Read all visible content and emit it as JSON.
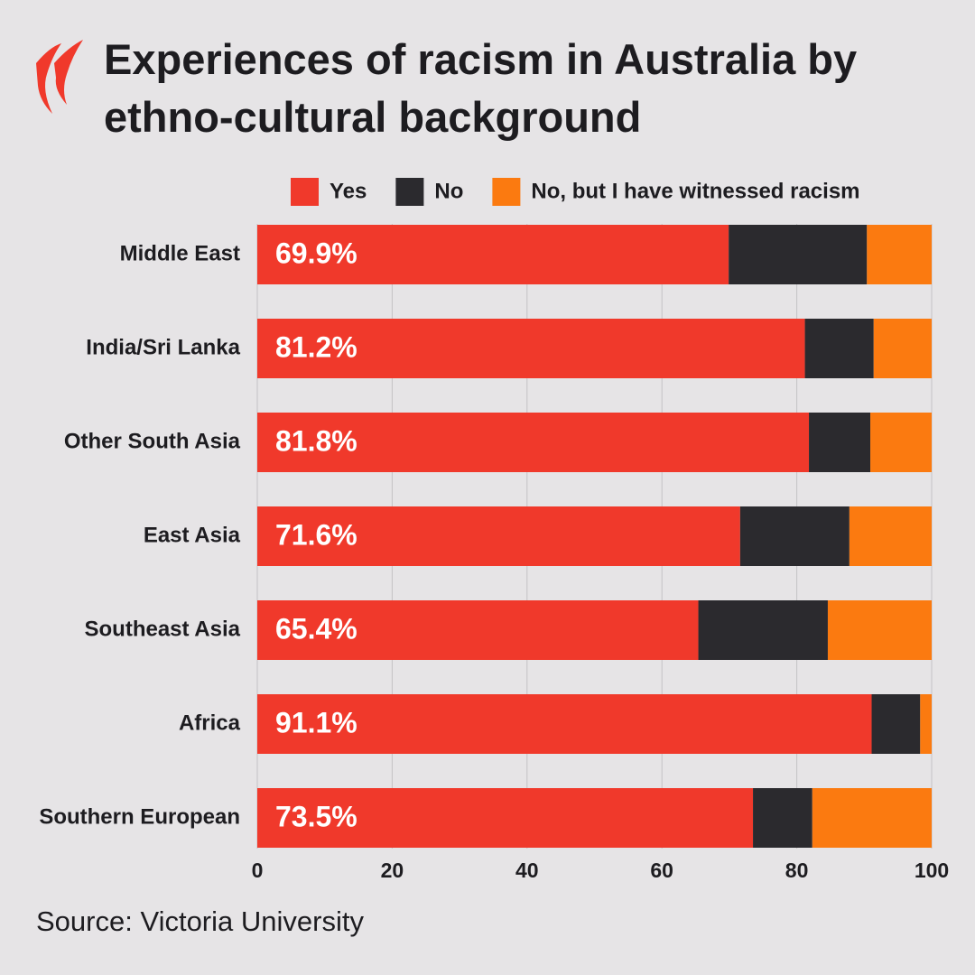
{
  "chart_data": {
    "type": "stacked-bar-horizontal",
    "title": "Experiences of racism in Australia by ethno-cultural background",
    "source": "Source: Victoria University",
    "categories": [
      "Middle East",
      "India/Sri Lanka",
      "Other South Asia",
      "East Asia",
      "Southeast Asia",
      "Africa",
      "Southern European"
    ],
    "series": [
      {
        "name": "Yes",
        "color": "#f0392b",
        "values": [
          69.9,
          81.2,
          81.8,
          71.6,
          65.4,
          91.1,
          73.5
        ],
        "value_labels": [
          "69.9%",
          "81.2%",
          "81.8%",
          "71.6%",
          "65.4%",
          "91.1%",
          "73.5%"
        ]
      },
      {
        "name": "No",
        "color": "#2b2a2e",
        "values": [
          20.5,
          10.2,
          9.1,
          16.2,
          19.2,
          7.2,
          8.8
        ]
      },
      {
        "name": "No, but I have witnessed racism",
        "color": "#fb7a10",
        "values": [
          9.6,
          8.6,
          9.1,
          12.2,
          15.4,
          1.7,
          17.7
        ]
      }
    ],
    "xlim": [
      0,
      100
    ],
    "xticks": [
      0,
      20,
      40,
      60,
      80,
      100
    ],
    "grid": true
  }
}
